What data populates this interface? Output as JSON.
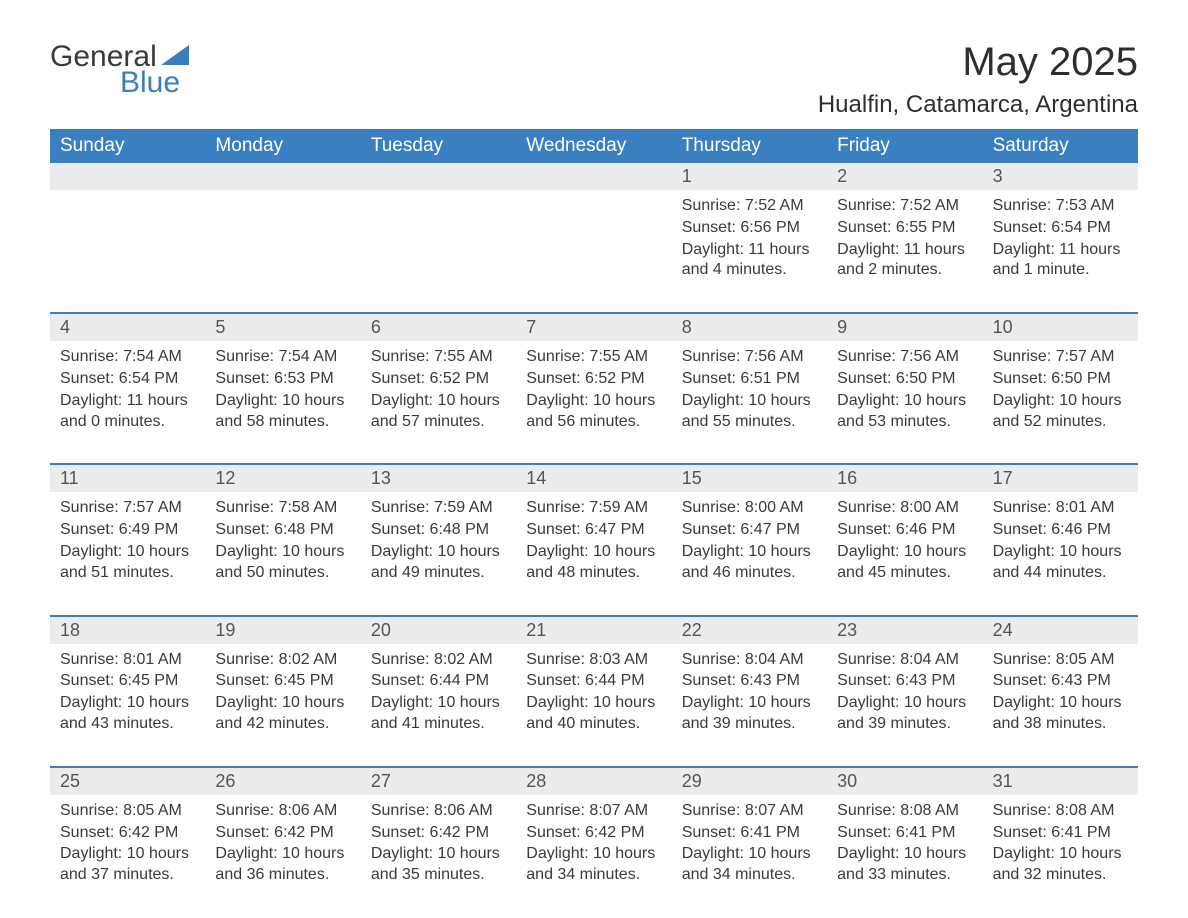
{
  "logo": {
    "text_general": "General",
    "text_blue": "Blue",
    "triangle_color": "#3a80c1"
  },
  "title": "May 2025",
  "location": "Hualfin, Catamarca, Argentina",
  "colors": {
    "header_bg": "#3a80c1",
    "header_text": "#ffffff",
    "daynum_bg": "#ececec",
    "daynum_text": "#555555",
    "body_text": "#3a3a3a",
    "week_border": "#3a80c1",
    "page_bg": "#ffffff"
  },
  "fonts": {
    "title_size_pt": 30,
    "location_size_pt": 18,
    "weekday_size_pt": 14,
    "daynum_size_pt": 13,
    "body_size_pt": 12
  },
  "weekdays": [
    "Sunday",
    "Monday",
    "Tuesday",
    "Wednesday",
    "Thursday",
    "Friday",
    "Saturday"
  ],
  "weeks": [
    [
      {
        "num": "",
        "sunrise": "",
        "sunset": "",
        "daylight": ""
      },
      {
        "num": "",
        "sunrise": "",
        "sunset": "",
        "daylight": ""
      },
      {
        "num": "",
        "sunrise": "",
        "sunset": "",
        "daylight": ""
      },
      {
        "num": "",
        "sunrise": "",
        "sunset": "",
        "daylight": ""
      },
      {
        "num": "1",
        "sunrise": "Sunrise: 7:52 AM",
        "sunset": "Sunset: 6:56 PM",
        "daylight": "Daylight: 11 hours and 4 minutes."
      },
      {
        "num": "2",
        "sunrise": "Sunrise: 7:52 AM",
        "sunset": "Sunset: 6:55 PM",
        "daylight": "Daylight: 11 hours and 2 minutes."
      },
      {
        "num": "3",
        "sunrise": "Sunrise: 7:53 AM",
        "sunset": "Sunset: 6:54 PM",
        "daylight": "Daylight: 11 hours and 1 minute."
      }
    ],
    [
      {
        "num": "4",
        "sunrise": "Sunrise: 7:54 AM",
        "sunset": "Sunset: 6:54 PM",
        "daylight": "Daylight: 11 hours and 0 minutes."
      },
      {
        "num": "5",
        "sunrise": "Sunrise: 7:54 AM",
        "sunset": "Sunset: 6:53 PM",
        "daylight": "Daylight: 10 hours and 58 minutes."
      },
      {
        "num": "6",
        "sunrise": "Sunrise: 7:55 AM",
        "sunset": "Sunset: 6:52 PM",
        "daylight": "Daylight: 10 hours and 57 minutes."
      },
      {
        "num": "7",
        "sunrise": "Sunrise: 7:55 AM",
        "sunset": "Sunset: 6:52 PM",
        "daylight": "Daylight: 10 hours and 56 minutes."
      },
      {
        "num": "8",
        "sunrise": "Sunrise: 7:56 AM",
        "sunset": "Sunset: 6:51 PM",
        "daylight": "Daylight: 10 hours and 55 minutes."
      },
      {
        "num": "9",
        "sunrise": "Sunrise: 7:56 AM",
        "sunset": "Sunset: 6:50 PM",
        "daylight": "Daylight: 10 hours and 53 minutes."
      },
      {
        "num": "10",
        "sunrise": "Sunrise: 7:57 AM",
        "sunset": "Sunset: 6:50 PM",
        "daylight": "Daylight: 10 hours and 52 minutes."
      }
    ],
    [
      {
        "num": "11",
        "sunrise": "Sunrise: 7:57 AM",
        "sunset": "Sunset: 6:49 PM",
        "daylight": "Daylight: 10 hours and 51 minutes."
      },
      {
        "num": "12",
        "sunrise": "Sunrise: 7:58 AM",
        "sunset": "Sunset: 6:48 PM",
        "daylight": "Daylight: 10 hours and 50 minutes."
      },
      {
        "num": "13",
        "sunrise": "Sunrise: 7:59 AM",
        "sunset": "Sunset: 6:48 PM",
        "daylight": "Daylight: 10 hours and 49 minutes."
      },
      {
        "num": "14",
        "sunrise": "Sunrise: 7:59 AM",
        "sunset": "Sunset: 6:47 PM",
        "daylight": "Daylight: 10 hours and 48 minutes."
      },
      {
        "num": "15",
        "sunrise": "Sunrise: 8:00 AM",
        "sunset": "Sunset: 6:47 PM",
        "daylight": "Daylight: 10 hours and 46 minutes."
      },
      {
        "num": "16",
        "sunrise": "Sunrise: 8:00 AM",
        "sunset": "Sunset: 6:46 PM",
        "daylight": "Daylight: 10 hours and 45 minutes."
      },
      {
        "num": "17",
        "sunrise": "Sunrise: 8:01 AM",
        "sunset": "Sunset: 6:46 PM",
        "daylight": "Daylight: 10 hours and 44 minutes."
      }
    ],
    [
      {
        "num": "18",
        "sunrise": "Sunrise: 8:01 AM",
        "sunset": "Sunset: 6:45 PM",
        "daylight": "Daylight: 10 hours and 43 minutes."
      },
      {
        "num": "19",
        "sunrise": "Sunrise: 8:02 AM",
        "sunset": "Sunset: 6:45 PM",
        "daylight": "Daylight: 10 hours and 42 minutes."
      },
      {
        "num": "20",
        "sunrise": "Sunrise: 8:02 AM",
        "sunset": "Sunset: 6:44 PM",
        "daylight": "Daylight: 10 hours and 41 minutes."
      },
      {
        "num": "21",
        "sunrise": "Sunrise: 8:03 AM",
        "sunset": "Sunset: 6:44 PM",
        "daylight": "Daylight: 10 hours and 40 minutes."
      },
      {
        "num": "22",
        "sunrise": "Sunrise: 8:04 AM",
        "sunset": "Sunset: 6:43 PM",
        "daylight": "Daylight: 10 hours and 39 minutes."
      },
      {
        "num": "23",
        "sunrise": "Sunrise: 8:04 AM",
        "sunset": "Sunset: 6:43 PM",
        "daylight": "Daylight: 10 hours and 39 minutes."
      },
      {
        "num": "24",
        "sunrise": "Sunrise: 8:05 AM",
        "sunset": "Sunset: 6:43 PM",
        "daylight": "Daylight: 10 hours and 38 minutes."
      }
    ],
    [
      {
        "num": "25",
        "sunrise": "Sunrise: 8:05 AM",
        "sunset": "Sunset: 6:42 PM",
        "daylight": "Daylight: 10 hours and 37 minutes."
      },
      {
        "num": "26",
        "sunrise": "Sunrise: 8:06 AM",
        "sunset": "Sunset: 6:42 PM",
        "daylight": "Daylight: 10 hours and 36 minutes."
      },
      {
        "num": "27",
        "sunrise": "Sunrise: 8:06 AM",
        "sunset": "Sunset: 6:42 PM",
        "daylight": "Daylight: 10 hours and 35 minutes."
      },
      {
        "num": "28",
        "sunrise": "Sunrise: 8:07 AM",
        "sunset": "Sunset: 6:42 PM",
        "daylight": "Daylight: 10 hours and 34 minutes."
      },
      {
        "num": "29",
        "sunrise": "Sunrise: 8:07 AM",
        "sunset": "Sunset: 6:41 PM",
        "daylight": "Daylight: 10 hours and 34 minutes."
      },
      {
        "num": "30",
        "sunrise": "Sunrise: 8:08 AM",
        "sunset": "Sunset: 6:41 PM",
        "daylight": "Daylight: 10 hours and 33 minutes."
      },
      {
        "num": "31",
        "sunrise": "Sunrise: 8:08 AM",
        "sunset": "Sunset: 6:41 PM",
        "daylight": "Daylight: 10 hours and 32 minutes."
      }
    ]
  ]
}
